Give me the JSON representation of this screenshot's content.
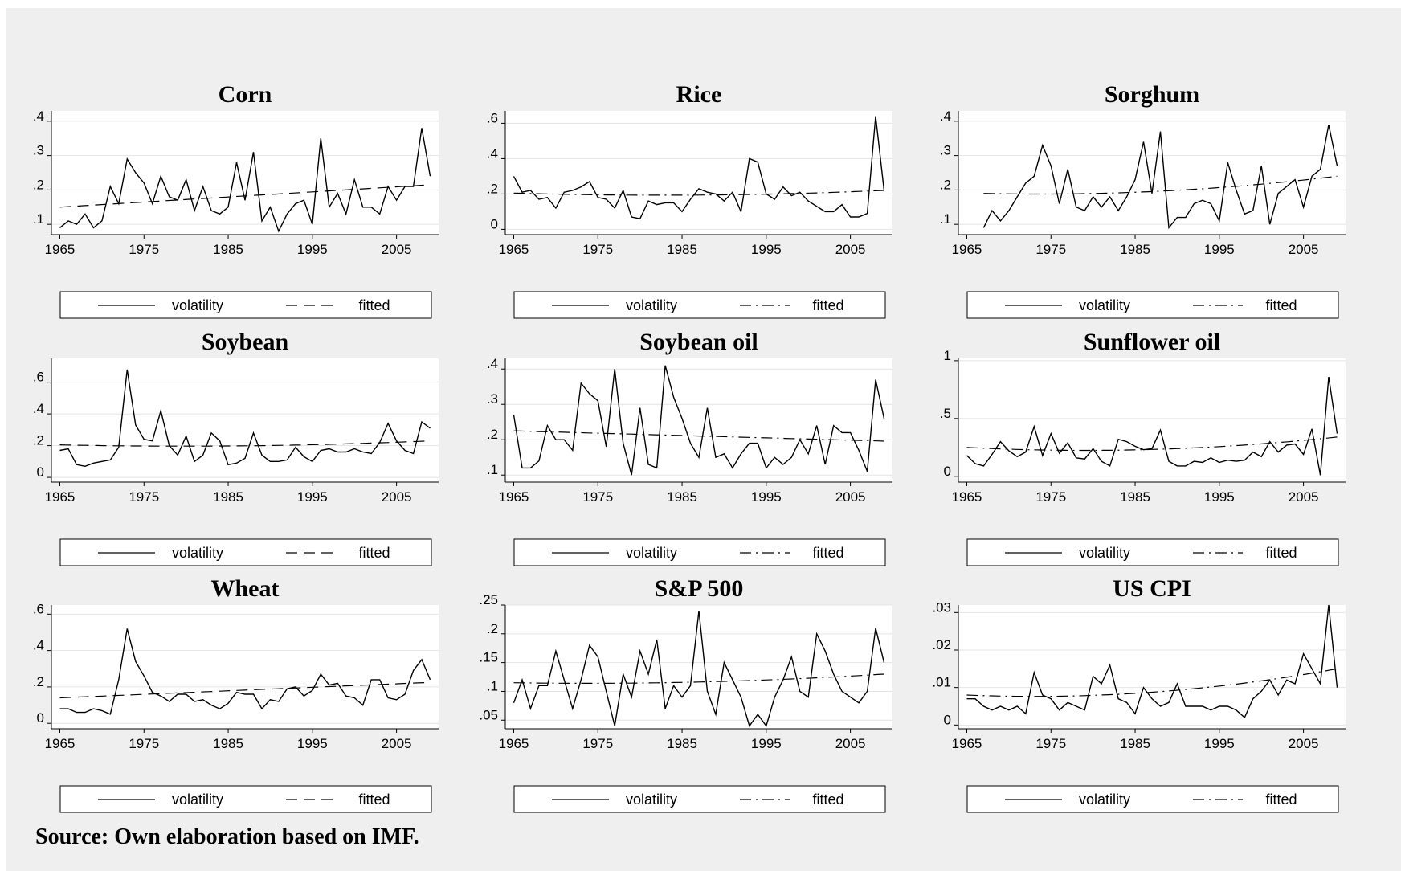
{
  "source_note": "Source: Own elaboration based on IMF.",
  "chart_data": [
    {
      "type": "line",
      "title": "Corn",
      "x_start": 1965,
      "xlim": [
        1964,
        2010
      ],
      "xticks": [
        "1965",
        "1975",
        "1985",
        "1995",
        "2005"
      ],
      "ylim": [
        0.07,
        0.43
      ],
      "yticks": [
        0.1,
        0.2,
        0.3,
        0.4
      ],
      "ytick_labels": [
        ".1",
        ".2",
        ".3",
        ".4"
      ],
      "grid": true,
      "legend": "bottom",
      "series": [
        {
          "name": "volatility",
          "style": "solid",
          "values": [
            0.09,
            0.11,
            0.1,
            0.13,
            0.09,
            0.11,
            0.21,
            0.16,
            0.29,
            0.25,
            0.22,
            0.16,
            0.24,
            0.18,
            0.17,
            0.23,
            0.14,
            0.21,
            0.14,
            0.13,
            0.15,
            0.28,
            0.17,
            0.31,
            0.11,
            0.15,
            0.08,
            0.13,
            0.16,
            0.17,
            0.1,
            0.35,
            0.15,
            0.19,
            0.13,
            0.23,
            0.15,
            0.15,
            0.13,
            0.21,
            0.17,
            0.21,
            0.21,
            0.38,
            0.24
          ]
        },
        {
          "name": "fitted",
          "style": "dashed",
          "values": [
            0.15,
            0.215
          ]
        }
      ]
    },
    {
      "type": "line",
      "title": "Rice",
      "x_start": 1965,
      "xlim": [
        1964,
        2010
      ],
      "xticks": [
        "1965",
        "1975",
        "1985",
        "1995",
        "2005"
      ],
      "ylim": [
        -0.03,
        0.67
      ],
      "yticks": [
        0,
        0.2,
        0.4,
        0.6
      ],
      "ytick_labels": [
        "0",
        ".2",
        ".4",
        ".6"
      ],
      "grid": true,
      "legend": "bottom",
      "series": [
        {
          "name": "volatility",
          "style": "solid",
          "values": [
            0.3,
            0.21,
            0.22,
            0.17,
            0.18,
            0.12,
            0.21,
            0.22,
            0.24,
            0.27,
            0.18,
            0.17,
            0.12,
            0.22,
            0.07,
            0.06,
            0.16,
            0.14,
            0.15,
            0.15,
            0.1,
            0.17,
            0.23,
            0.21,
            0.2,
            0.16,
            0.21,
            0.1,
            0.4,
            0.38,
            0.2,
            0.17,
            0.24,
            0.19,
            0.21,
            0.16,
            0.13,
            0.1,
            0.1,
            0.14,
            0.07,
            0.07,
            0.09,
            0.64,
            0.22
          ]
        },
        {
          "name": "fitted",
          "style": "dashdot",
          "values": [
            0.205,
            0.175,
            0.22
          ]
        }
      ]
    },
    {
      "type": "line",
      "title": "Sorghum",
      "x_start": 1967,
      "xlim": [
        1964,
        2010
      ],
      "xticks": [
        "1965",
        "1975",
        "1985",
        "1995",
        "2005"
      ],
      "ylim": [
        0.07,
        0.43
      ],
      "yticks": [
        0.1,
        0.2,
        0.3,
        0.4
      ],
      "ytick_labels": [
        ".1",
        ".2",
        ".3",
        ".4"
      ],
      "grid": true,
      "legend": "bottom",
      "series": [
        {
          "name": "volatility",
          "style": "solid",
          "values": [
            0.09,
            0.14,
            0.11,
            0.14,
            0.18,
            0.22,
            0.24,
            0.33,
            0.27,
            0.16,
            0.26,
            0.15,
            0.14,
            0.18,
            0.15,
            0.18,
            0.14,
            0.18,
            0.23,
            0.34,
            0.19,
            0.37,
            0.09,
            0.12,
            0.12,
            0.16,
            0.17,
            0.16,
            0.11,
            0.28,
            0.2,
            0.13,
            0.14,
            0.27,
            0.1,
            0.19,
            0.21,
            0.23,
            0.15,
            0.24,
            0.26,
            0.39,
            0.27
          ]
        },
        {
          "name": "fitted",
          "style": "dashdot",
          "values": [
            0.19,
            0.178,
            0.24
          ]
        }
      ]
    },
    {
      "type": "line",
      "title": "Soybean",
      "x_start": 1965,
      "xlim": [
        1964,
        2010
      ],
      "xticks": [
        "1965",
        "1975",
        "1985",
        "1995",
        "2005"
      ],
      "ylim": [
        -0.03,
        0.75
      ],
      "yticks": [
        0,
        0.2,
        0.4,
        0.6
      ],
      "ytick_labels": [
        "0",
        ".2",
        ".4",
        ".6"
      ],
      "grid": true,
      "legend": "bottom",
      "series": [
        {
          "name": "volatility",
          "style": "solid",
          "values": [
            0.17,
            0.18,
            0.08,
            0.07,
            0.09,
            0.1,
            0.11,
            0.19,
            0.68,
            0.33,
            0.24,
            0.23,
            0.42,
            0.2,
            0.14,
            0.26,
            0.1,
            0.14,
            0.28,
            0.23,
            0.08,
            0.09,
            0.12,
            0.28,
            0.14,
            0.1,
            0.1,
            0.11,
            0.19,
            0.13,
            0.1,
            0.17,
            0.18,
            0.16,
            0.16,
            0.18,
            0.16,
            0.15,
            0.22,
            0.34,
            0.23,
            0.17,
            0.15,
            0.35,
            0.31
          ]
        },
        {
          "name": "fitted",
          "style": "dashed",
          "values": [
            0.205,
            0.18,
            0.23
          ]
        }
      ]
    },
    {
      "type": "line",
      "title": "Soybean oil",
      "x_start": 1965,
      "xlim": [
        1964,
        2010
      ],
      "xticks": [
        "1965",
        "1975",
        "1985",
        "1995",
        "2005"
      ],
      "ylim": [
        0.08,
        0.43
      ],
      "yticks": [
        0.1,
        0.2,
        0.3,
        0.4
      ],
      "ytick_labels": [
        ".1",
        ".2",
        ".3",
        ".4"
      ],
      "grid": true,
      "legend": "bottom",
      "series": [
        {
          "name": "volatility",
          "style": "solid",
          "values": [
            0.27,
            0.12,
            0.12,
            0.14,
            0.24,
            0.2,
            0.2,
            0.17,
            0.36,
            0.33,
            0.31,
            0.18,
            0.4,
            0.19,
            0.1,
            0.29,
            0.13,
            0.12,
            0.41,
            0.32,
            0.26,
            0.19,
            0.15,
            0.29,
            0.15,
            0.16,
            0.12,
            0.16,
            0.19,
            0.19,
            0.12,
            0.15,
            0.13,
            0.15,
            0.2,
            0.16,
            0.24,
            0.13,
            0.24,
            0.22,
            0.22,
            0.17,
            0.11,
            0.37,
            0.26
          ]
        },
        {
          "name": "fitted",
          "style": "dashdot",
          "values": [
            0.225,
            0.196
          ]
        }
      ]
    },
    {
      "type": "line",
      "title": "Sunflower oil",
      "x_start": 1965,
      "xlim": [
        1964,
        2010
      ],
      "xticks": [
        "1965",
        "1975",
        "1985",
        "1995",
        "2005"
      ],
      "ylim": [
        -0.05,
        1.02
      ],
      "yticks": [
        0,
        0.5,
        1
      ],
      "ytick_labels": [
        "0",
        ".5",
        "1"
      ],
      "grid": true,
      "legend": "bottom",
      "series": [
        {
          "name": "volatility",
          "style": "solid",
          "values": [
            0.18,
            0.11,
            0.09,
            0.19,
            0.3,
            0.22,
            0.17,
            0.21,
            0.43,
            0.18,
            0.37,
            0.2,
            0.29,
            0.16,
            0.15,
            0.24,
            0.13,
            0.09,
            0.32,
            0.3,
            0.26,
            0.23,
            0.24,
            0.4,
            0.13,
            0.09,
            0.09,
            0.13,
            0.12,
            0.16,
            0.12,
            0.14,
            0.13,
            0.14,
            0.21,
            0.17,
            0.3,
            0.21,
            0.27,
            0.28,
            0.19,
            0.41,
            0.01,
            0.86,
            0.37
          ]
        },
        {
          "name": "fitted",
          "style": "dashdot",
          "values": [
            0.25,
            0.17,
            0.34
          ]
        }
      ]
    },
    {
      "type": "line",
      "title": "Wheat",
      "x_start": 1965,
      "xlim": [
        1964,
        2010
      ],
      "xticks": [
        "1965",
        "1975",
        "1985",
        "1995",
        "2005"
      ],
      "ylim": [
        -0.03,
        0.65
      ],
      "yticks": [
        0,
        0.2,
        0.4,
        0.6
      ],
      "ytick_labels": [
        "0",
        ".2",
        ".4",
        ".6"
      ],
      "grid": true,
      "legend": "bottom",
      "series": [
        {
          "name": "volatility",
          "style": "solid",
          "values": [
            0.08,
            0.08,
            0.06,
            0.06,
            0.08,
            0.07,
            0.05,
            0.24,
            0.52,
            0.34,
            0.26,
            0.17,
            0.15,
            0.12,
            0.16,
            0.16,
            0.12,
            0.13,
            0.1,
            0.08,
            0.11,
            0.17,
            0.16,
            0.16,
            0.08,
            0.13,
            0.12,
            0.19,
            0.2,
            0.15,
            0.18,
            0.27,
            0.21,
            0.22,
            0.15,
            0.14,
            0.1,
            0.24,
            0.24,
            0.14,
            0.13,
            0.16,
            0.29,
            0.35,
            0.24
          ]
        },
        {
          "name": "fitted",
          "style": "dashed",
          "values": [
            0.14,
            0.225
          ]
        }
      ]
    },
    {
      "type": "line",
      "title": "S&P 500",
      "x_start": 1965,
      "xlim": [
        1964,
        2010
      ],
      "xticks": [
        "1965",
        "1975",
        "1985",
        "1995",
        "2005"
      ],
      "ylim": [
        0.035,
        0.25
      ],
      "yticks": [
        0.05,
        0.1,
        0.15,
        0.2,
        0.25
      ],
      "ytick_labels": [
        ".05",
        ".1",
        ".15",
        ".2",
        ".25"
      ],
      "grid": true,
      "legend": "bottom",
      "series": [
        {
          "name": "volatility",
          "style": "solid",
          "values": [
            0.08,
            0.12,
            0.07,
            0.11,
            0.11,
            0.17,
            0.12,
            0.07,
            0.12,
            0.18,
            0.16,
            0.1,
            0.04,
            0.13,
            0.09,
            0.17,
            0.13,
            0.19,
            0.07,
            0.11,
            0.09,
            0.11,
            0.24,
            0.1,
            0.06,
            0.15,
            0.12,
            0.09,
            0.04,
            0.06,
            0.04,
            0.09,
            0.12,
            0.16,
            0.1,
            0.09,
            0.2,
            0.17,
            0.13,
            0.1,
            0.09,
            0.08,
            0.1,
            0.21,
            0.15
          ]
        },
        {
          "name": "fitted",
          "style": "dashdot",
          "values": [
            0.115,
            0.11,
            0.13
          ]
        }
      ]
    },
    {
      "type": "line",
      "title": "US CPI",
      "x_start": 1965,
      "xlim": [
        1964,
        2010
      ],
      "xticks": [
        "1965",
        "1975",
        "1985",
        "1995",
        "2005"
      ],
      "ylim": [
        -0.001,
        0.032
      ],
      "yticks": [
        0,
        0.01,
        0.02,
        0.03
      ],
      "ytick_labels": [
        "0",
        ".01",
        ".02",
        ".03"
      ],
      "grid": true,
      "legend": "bottom",
      "series": [
        {
          "name": "volatility",
          "style": "solid",
          "values": [
            0.007,
            0.007,
            0.005,
            0.004,
            0.005,
            0.004,
            0.005,
            0.003,
            0.014,
            0.008,
            0.007,
            0.004,
            0.006,
            0.005,
            0.004,
            0.013,
            0.011,
            0.016,
            0.007,
            0.006,
            0.003,
            0.01,
            0.007,
            0.005,
            0.006,
            0.011,
            0.005,
            0.005,
            0.005,
            0.004,
            0.005,
            0.005,
            0.004,
            0.002,
            0.007,
            0.009,
            0.012,
            0.008,
            0.012,
            0.011,
            0.019,
            0.015,
            0.011,
            0.032,
            0.01
          ]
        },
        {
          "name": "fitted",
          "style": "dashdot",
          "values": [
            0.008,
            0.006,
            0.015
          ]
        }
      ]
    }
  ]
}
